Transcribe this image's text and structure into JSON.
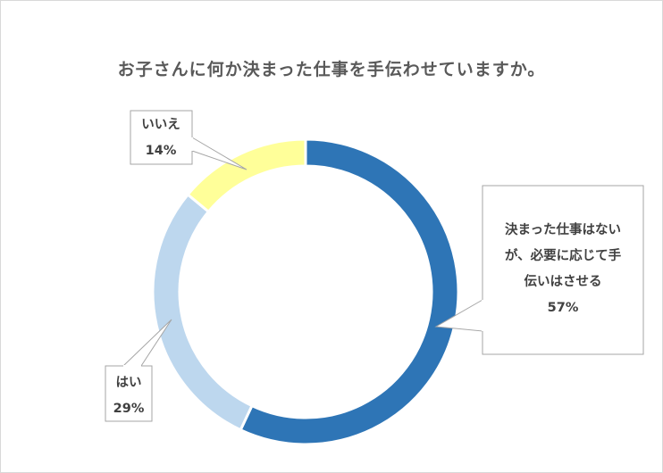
{
  "chart_data": {
    "type": "pie",
    "variant": "donut",
    "title": "お子さんに何か決まった仕事を手伝わせていますか。",
    "slices": [
      {
        "label_lines": [
          "決まった仕事はない",
          "が、必要に応じて手",
          "伝いはさせる"
        ],
        "pct_label": "57%",
        "value": 57,
        "color": "#2e75b6"
      },
      {
        "label_lines": [
          "はい"
        ],
        "pct_label": "29%",
        "value": 29,
        "color": "#bdd7ee"
      },
      {
        "label_lines": [
          "いいえ"
        ],
        "pct_label": "14%",
        "value": 14,
        "color": "#ffff99"
      }
    ]
  }
}
